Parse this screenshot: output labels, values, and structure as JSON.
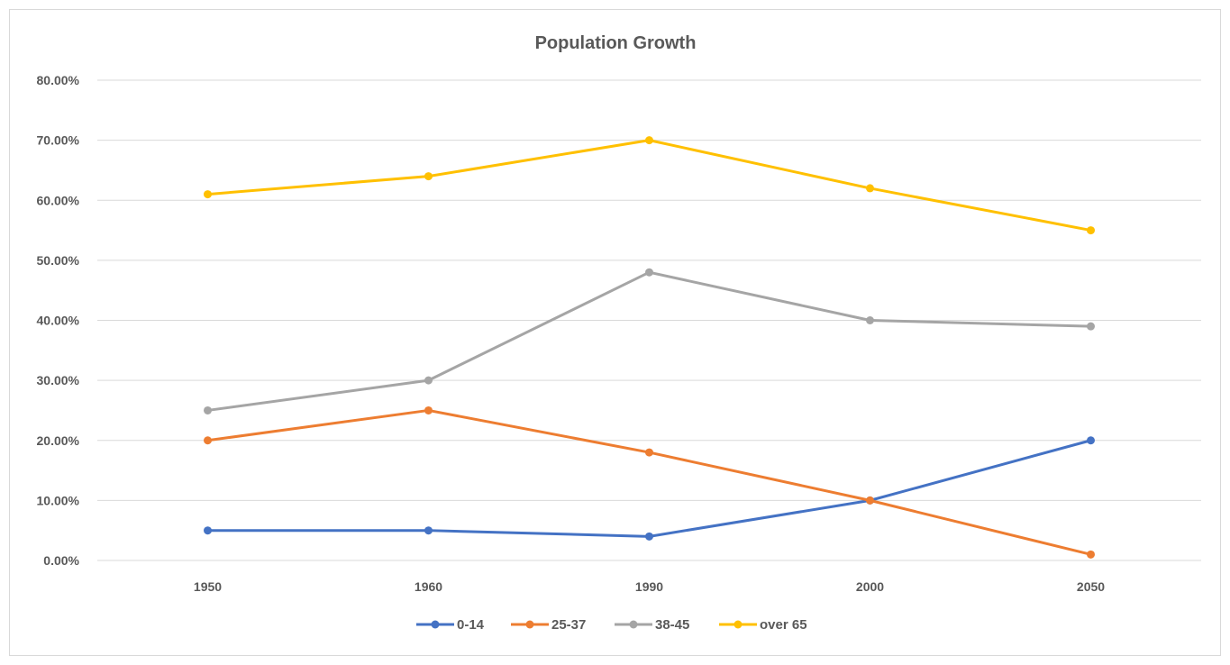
{
  "chart_data": {
    "type": "line",
    "title": "Population Growth",
    "categories": [
      "1950",
      "1960",
      "1990",
      "2000",
      "2050"
    ],
    "ylim": [
      0,
      0.8
    ],
    "yticks": [
      0,
      0.1,
      0.2,
      0.3,
      0.4,
      0.5,
      0.6,
      0.7,
      0.8
    ],
    "ytick_labels": [
      "0.00%",
      "10.00%",
      "20.00%",
      "30.00%",
      "40.00%",
      "50.00%",
      "60.00%",
      "70.00%",
      "80.00%"
    ],
    "grid": true,
    "legend": "bottom",
    "series": [
      {
        "name": "0-14",
        "color": "#4472c4",
        "values": [
          0.05,
          0.05,
          0.04,
          0.1,
          0.2
        ]
      },
      {
        "name": "25-37",
        "color": "#ed7d31",
        "values": [
          0.2,
          0.25,
          0.18,
          0.1,
          0.01
        ]
      },
      {
        "name": "38-45",
        "color": "#a5a5a5",
        "values": [
          0.25,
          0.3,
          0.48,
          0.4,
          0.39
        ]
      },
      {
        "name": "over 65",
        "color": "#ffc000",
        "values": [
          0.61,
          0.64,
          0.7,
          0.62,
          0.55
        ]
      }
    ]
  }
}
